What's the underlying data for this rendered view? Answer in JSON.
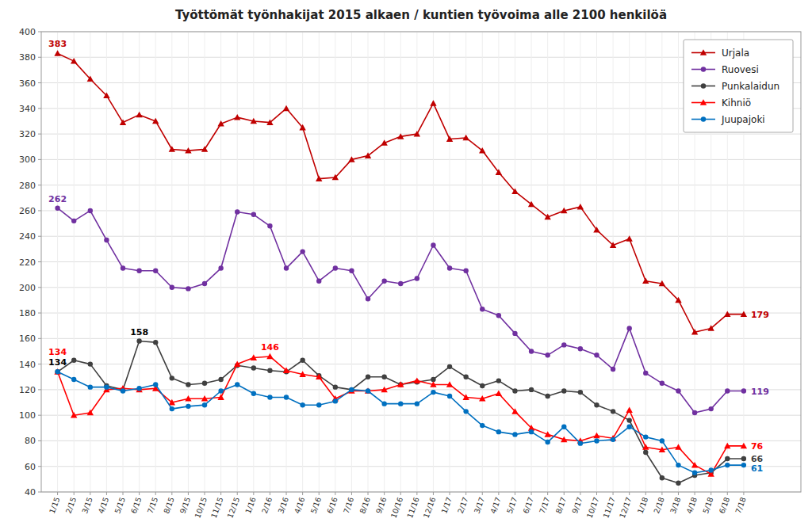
{
  "chart_data": {
    "type": "line",
    "title": "Työttömät työnhakijat 2015 alkaen / kuntien työvoima alle 2100 henkilöä",
    "categories": [
      "1/15",
      "2/15",
      "3/15",
      "4/15",
      "5/15",
      "6/15",
      "7/15",
      "8/15",
      "9/15",
      "10/15",
      "11/15",
      "12/15",
      "1/16",
      "2/16",
      "3/16",
      "4/16",
      "5/16",
      "6/16",
      "7/16",
      "8/16",
      "9/16",
      "10/16",
      "11/16",
      "12/16",
      "1/17",
      "2/17",
      "3/17",
      "4/17",
      "5/17",
      "6/17",
      "7/17",
      "8/17",
      "9/17",
      "10/17",
      "11/17",
      "12/17",
      "1/18",
      "2/18",
      "3/18",
      "4/18",
      "5/18",
      "6/18",
      "7/18"
    ],
    "series": [
      {
        "name": "Urjala",
        "color": "#c00000",
        "marker": "triangle",
        "values": [
          383,
          377,
          363,
          350,
          329,
          335,
          330,
          308,
          307,
          308,
          328,
          333,
          330,
          329,
          340,
          325,
          285,
          286,
          300,
          303,
          313,
          318,
          320,
          344,
          316,
          317,
          307,
          290,
          275,
          265,
          255,
          260,
          263,
          245,
          233,
          238,
          205,
          203,
          190,
          165,
          168,
          179,
          179
        ]
      },
      {
        "name": "Ruovesi",
        "color": "#7030a0",
        "marker": "circle",
        "values": [
          262,
          252,
          260,
          237,
          215,
          213,
          213,
          200,
          199,
          203,
          215,
          259,
          257,
          248,
          215,
          228,
          205,
          215,
          213,
          191,
          205,
          203,
          207,
          233,
          215,
          213,
          183,
          178,
          164,
          150,
          147,
          155,
          152,
          147,
          136,
          168,
          133,
          125,
          119,
          102,
          105,
          119,
          119
        ]
      },
      {
        "name": "Punkalaidun",
        "color": "#404040",
        "marker": "circle",
        "values": [
          134,
          143,
          140,
          123,
          120,
          158,
          157,
          129,
          124,
          125,
          128,
          139,
          137,
          135,
          134,
          143,
          131,
          122,
          120,
          130,
          130,
          124,
          126,
          128,
          138,
          130,
          123,
          127,
          119,
          120,
          115,
          119,
          118,
          108,
          103,
          96,
          71,
          51,
          47,
          53,
          55,
          66,
          66
        ]
      },
      {
        "name": "Kihniö",
        "color": "#ff0000",
        "marker": "triangle",
        "values": [
          134,
          100,
          102,
          120,
          121,
          120,
          121,
          110,
          113,
          113,
          114,
          140,
          145,
          146,
          135,
          132,
          130,
          113,
          119,
          119,
          120,
          124,
          127,
          124,
          124,
          114,
          113,
          117,
          103,
          90,
          85,
          81,
          80,
          84,
          82,
          104,
          75,
          73,
          75,
          61,
          54,
          76,
          76
        ]
      },
      {
        "name": "Juupajoki",
        "color": "#0070c0",
        "marker": "circle",
        "values": [
          134,
          128,
          122,
          122,
          119,
          121,
          124,
          105,
          107,
          108,
          119,
          124,
          117,
          114,
          114,
          108,
          108,
          111,
          120,
          119,
          109,
          109,
          109,
          118,
          115,
          103,
          92,
          87,
          85,
          87,
          79,
          91,
          78,
          80,
          81,
          91,
          83,
          80,
          61,
          55,
          57,
          61,
          61
        ]
      }
    ],
    "ylim": [
      40,
      400
    ],
    "yticks": [
      40,
      60,
      80,
      100,
      120,
      140,
      160,
      180,
      200,
      220,
      240,
      260,
      280,
      300,
      320,
      340,
      360,
      380,
      400
    ],
    "grid": true,
    "legend": "upper right",
    "annotations": [
      {
        "text": "383",
        "color": "#c00000",
        "x": "1/15",
        "y": 383
      },
      {
        "text": "262",
        "color": "#7030a0",
        "x": "1/15",
        "y": 262
      },
      {
        "text": "134",
        "color": "#000000",
        "x": "1/15",
        "y": 134
      },
      {
        "text": "134",
        "color": "#ff0000",
        "x": "1/15",
        "y": 134
      },
      {
        "text": "158",
        "color": "#000000",
        "x": "6/15",
        "y": 158
      },
      {
        "text": "146",
        "color": "#ff0000",
        "x": "2/16",
        "y": 146
      },
      {
        "text": "179",
        "color": "#c00000",
        "x": "7/18",
        "y": 179
      },
      {
        "text": "119",
        "color": "#7030a0",
        "x": "7/18",
        "y": 119
      },
      {
        "text": "66",
        "color": "#404040",
        "x": "7/18",
        "y": 66
      },
      {
        "text": "76",
        "color": "#ff0000",
        "x": "7/18",
        "y": 76
      },
      {
        "text": "61",
        "color": "#0070c0",
        "x": "7/18",
        "y": 61
      }
    ]
  }
}
